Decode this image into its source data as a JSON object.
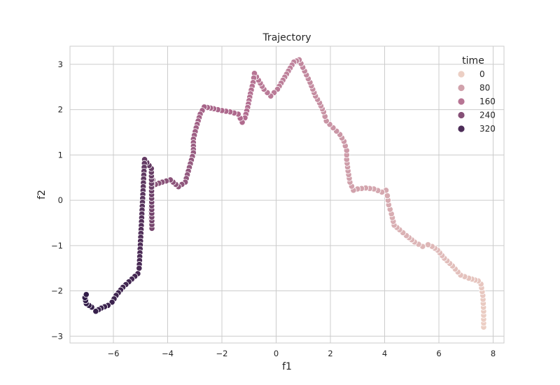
{
  "chart_data": {
    "type": "scatter",
    "title": "Trajectory",
    "xlabel": "f1",
    "ylabel": "f2",
    "xlim": [
      -7.6,
      8.4
    ],
    "ylim": [
      -3.15,
      3.4
    ],
    "xticks": [
      -6,
      -4,
      -2,
      0,
      2,
      4,
      6,
      8
    ],
    "yticks": [
      -3,
      -2,
      -1,
      0,
      1,
      2,
      3
    ],
    "grid": true,
    "legend": {
      "title": "time",
      "placement": "top-right",
      "entries": [
        {
          "label": "0",
          "value": 0
        },
        {
          "label": "80",
          "value": 80
        },
        {
          "label": "160",
          "value": 160
        },
        {
          "label": "240",
          "value": 240
        },
        {
          "label": "320",
          "value": 320
        }
      ]
    },
    "color_scale": {
      "low": "#eccfc4",
      "mid": "#b06a8e",
      "high": "#311c48",
      "min": 0,
      "max": 360
    },
    "path": [
      [
        7.65,
        -2.8
      ],
      [
        7.65,
        -2.45
      ],
      [
        7.62,
        -2.1
      ],
      [
        7.55,
        -1.85
      ],
      [
        7.45,
        -1.78
      ],
      [
        7.1,
        -1.72
      ],
      [
        6.8,
        -1.65
      ],
      [
        6.5,
        -1.45
      ],
      [
        6.2,
        -1.28
      ],
      [
        5.95,
        -1.1
      ],
      [
        5.75,
        -1.02
      ],
      [
        5.6,
        -0.98
      ],
      [
        5.4,
        -1.02
      ],
      [
        5.1,
        -0.92
      ],
      [
        4.8,
        -0.78
      ],
      [
        4.55,
        -0.65
      ],
      [
        4.35,
        -0.55
      ],
      [
        4.25,
        -0.3
      ],
      [
        4.15,
        -0.1
      ],
      [
        4.1,
        0.1
      ],
      [
        4.05,
        0.22
      ],
      [
        3.9,
        0.18
      ],
      [
        3.6,
        0.25
      ],
      [
        3.3,
        0.27
      ],
      [
        3.0,
        0.25
      ],
      [
        2.85,
        0.22
      ],
      [
        2.72,
        0.4
      ],
      [
        2.65,
        0.65
      ],
      [
        2.6,
        0.9
      ],
      [
        2.6,
        1.1
      ],
      [
        2.5,
        1.3
      ],
      [
        2.35,
        1.45
      ],
      [
        2.1,
        1.6
      ],
      [
        1.85,
        1.75
      ],
      [
        1.75,
        1.95
      ],
      [
        1.6,
        2.15
      ],
      [
        1.45,
        2.3
      ],
      [
        1.25,
        2.6
      ],
      [
        1.05,
        2.85
      ],
      [
        0.85,
        3.1
      ],
      [
        0.65,
        3.05
      ],
      [
        0.45,
        2.85
      ],
      [
        0.25,
        2.65
      ],
      [
        0.05,
        2.45
      ],
      [
        -0.2,
        2.3
      ],
      [
        -0.45,
        2.45
      ],
      [
        -0.65,
        2.65
      ],
      [
        -0.8,
        2.8
      ],
      [
        -0.85,
        2.6
      ],
      [
        -0.95,
        2.35
      ],
      [
        -1.05,
        2.05
      ],
      [
        -1.15,
        1.82
      ],
      [
        -1.25,
        1.72
      ],
      [
        -1.4,
        1.9
      ],
      [
        -1.7,
        1.95
      ],
      [
        -2.0,
        1.98
      ],
      [
        -2.3,
        2.02
      ],
      [
        -2.65,
        2.06
      ],
      [
        -2.8,
        1.9
      ],
      [
        -2.95,
        1.6
      ],
      [
        -3.05,
        1.35
      ],
      [
        -3.05,
        1.12
      ],
      [
        -3.05,
        1.05
      ],
      [
        -3.35,
        0.4
      ],
      [
        -3.6,
        0.3
      ],
      [
        -3.9,
        0.45
      ],
      [
        -4.2,
        0.4
      ],
      [
        -4.45,
        0.35
      ],
      [
        -4.55,
        0.45
      ],
      [
        -4.58,
        0.2
      ],
      [
        -4.6,
        -0.1
      ],
      [
        -4.6,
        -0.4
      ],
      [
        -4.58,
        -0.62
      ],
      [
        -4.6,
        0.7
      ],
      [
        -4.85,
        0.9
      ],
      [
        -5.05,
        -1.5
      ],
      [
        -5.1,
        -1.62
      ],
      [
        -5.65,
        -1.92
      ],
      [
        -5.9,
        -2.1
      ],
      [
        -6.05,
        -2.25
      ],
      [
        -6.2,
        -2.32
      ],
      [
        -6.45,
        -2.38
      ],
      [
        -6.65,
        -2.45
      ],
      [
        -6.8,
        -2.36
      ],
      [
        -7.0,
        -2.28
      ],
      [
        -7.05,
        -2.15
      ],
      [
        -7.0,
        -2.08
      ]
    ]
  }
}
